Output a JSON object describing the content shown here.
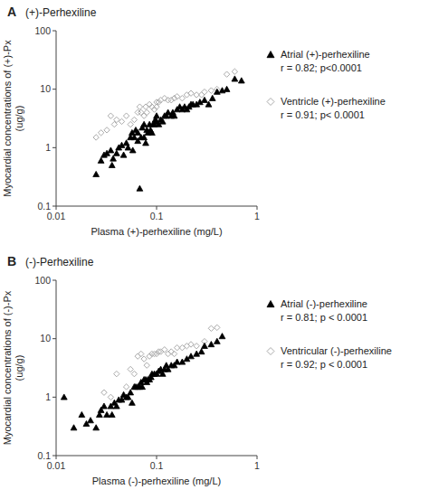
{
  "chart_data": [
    {
      "type": "scatter",
      "title": "A",
      "subtitle": "(+)-Perhexiline",
      "xlabel": "Plasma (+)-perhexiline (mg/L)",
      "ylabel": "Myocardial concentrations of (+)-Px\n(ug/g)",
      "log": true,
      "grid": false,
      "legend": "right",
      "xlim": [
        0.01,
        1.0
      ],
      "ylim": [
        0.1,
        100
      ],
      "xticks": [
        0.01,
        0.1,
        1
      ],
      "yticks": [
        0.1,
        1,
        10,
        100
      ],
      "series": [
        {
          "name": "Ventricle (+)-perhexiline",
          "color": "#aaaaaa",
          "marker": "diamond",
          "x": [
            0.025,
            0.028,
            0.032,
            0.035,
            0.038,
            0.04,
            0.045,
            0.05,
            0.055,
            0.06,
            0.065,
            0.068,
            0.07,
            0.075,
            0.078,
            0.08,
            0.085,
            0.09,
            0.095,
            0.1,
            0.1,
            0.105,
            0.11,
            0.12,
            0.13,
            0.14,
            0.15,
            0.16,
            0.18,
            0.2,
            0.22,
            0.25,
            0.28,
            0.3,
            0.35,
            0.4,
            0.5,
            0.6
          ],
          "values": [
            1.5,
            1.8,
            2.0,
            3.5,
            2.5,
            3.0,
            2.8,
            3.5,
            2.5,
            3.0,
            4.0,
            5.0,
            4.0,
            3.5,
            5.0,
            4.0,
            5.5,
            5.0,
            4.5,
            5.0,
            6.0,
            6.0,
            6.5,
            7.0,
            6.5,
            6.5,
            7.0,
            7.5,
            7.0,
            8.0,
            8.5,
            8.0,
            8.0,
            9.0,
            9.5,
            10.0,
            18.0,
            20.0
          ]
        },
        {
          "name": "Atrial (+)-perhexiline",
          "color": "#000000",
          "marker": "triangle",
          "x": [
            0.025,
            0.028,
            0.03,
            0.032,
            0.035,
            0.036,
            0.037,
            0.04,
            0.042,
            0.045,
            0.047,
            0.05,
            0.052,
            0.055,
            0.057,
            0.058,
            0.06,
            0.062,
            0.065,
            0.065,
            0.068,
            0.07,
            0.072,
            0.075,
            0.075,
            0.078,
            0.08,
            0.082,
            0.085,
            0.087,
            0.09,
            0.092,
            0.095,
            0.097,
            0.1,
            0.1,
            0.105,
            0.11,
            0.115,
            0.12,
            0.125,
            0.13,
            0.14,
            0.145,
            0.15,
            0.16,
            0.17,
            0.18,
            0.19,
            0.2,
            0.21,
            0.22,
            0.23,
            0.25,
            0.27,
            0.3,
            0.33,
            0.36,
            0.4,
            0.45,
            0.5,
            0.6,
            0.7
          ],
          "values": [
            0.35,
            0.6,
            0.75,
            0.8,
            0.9,
            0.5,
            0.65,
            0.8,
            1.0,
            1.1,
            0.75,
            1.2,
            1.0,
            1.5,
            1.8,
            0.9,
            1.5,
            2.0,
            1.3,
            1.8,
            0.2,
            1.5,
            2.2,
            1.5,
            2.5,
            1.2,
            2.0,
            1.8,
            2.5,
            2.0,
            1.8,
            2.5,
            2.5,
            3.0,
            3.5,
            2.8,
            2.5,
            3.0,
            2.8,
            3.5,
            3.5,
            4.0,
            3.5,
            4.0,
            3.5,
            4.5,
            5.0,
            4.5,
            5.0,
            4.5,
            5.0,
            5.5,
            5.5,
            5.5,
            6.0,
            6.5,
            5.5,
            7.0,
            9.0,
            9.5,
            10.0,
            15.0,
            14.0
          ]
        }
      ],
      "legend_order": [
        1,
        0
      ],
      "annotations": [
        "r = 0.82; p<0.0001",
        "r = 0.91; p< 0.0001"
      ]
    },
    {
      "type": "scatter",
      "title": "B",
      "subtitle": "(-)-Perhexiline",
      "xlabel": "Plasma (-)-perhexiline (mg/L)",
      "ylabel": "Myocardial concentrations of (-)-Px\n(ug/g)",
      "log": true,
      "grid": false,
      "legend": "right",
      "xlim": [
        0.01,
        1.0
      ],
      "ylim": [
        0.1,
        100
      ],
      "xticks": [
        0.01,
        0.1,
        1
      ],
      "yticks": [
        0.1,
        1,
        10,
        100
      ],
      "series": [
        {
          "name": "Ventricular (-)-perhexiline",
          "color": "#aaaaaa",
          "marker": "diamond",
          "x": [
            0.03,
            0.035,
            0.04,
            0.05,
            0.055,
            0.06,
            0.065,
            0.07,
            0.075,
            0.08,
            0.085,
            0.09,
            0.095,
            0.1,
            0.105,
            0.11,
            0.12,
            0.13,
            0.14,
            0.15,
            0.16,
            0.18,
            0.2,
            0.22,
            0.25,
            0.3,
            0.35,
            0.4
          ],
          "values": [
            1.2,
            1.0,
            2.5,
            1.5,
            3.0,
            2.5,
            5.0,
            5.5,
            4.5,
            3.5,
            5.0,
            5.5,
            5.5,
            5.5,
            6.0,
            6.0,
            6.5,
            5.5,
            6.0,
            5.5,
            7.0,
            7.0,
            7.5,
            8.0,
            7.5,
            9.0,
            15.0,
            15.5
          ]
        },
        {
          "name": "Atrial (-)-perhexiline",
          "color": "#000000",
          "marker": "triangle",
          "x": [
            0.012,
            0.015,
            0.018,
            0.02,
            0.022,
            0.025,
            0.027,
            0.028,
            0.03,
            0.032,
            0.035,
            0.036,
            0.038,
            0.04,
            0.042,
            0.045,
            0.047,
            0.05,
            0.052,
            0.055,
            0.057,
            0.06,
            0.062,
            0.065,
            0.068,
            0.07,
            0.072,
            0.075,
            0.078,
            0.08,
            0.082,
            0.085,
            0.088,
            0.09,
            0.095,
            0.1,
            0.105,
            0.11,
            0.115,
            0.12,
            0.125,
            0.13,
            0.14,
            0.15,
            0.16,
            0.18,
            0.2,
            0.22,
            0.25,
            0.28,
            0.3,
            0.35,
            0.4,
            0.45
          ],
          "values": [
            1.0,
            0.3,
            0.5,
            0.35,
            0.4,
            0.3,
            0.5,
            0.6,
            0.7,
            0.5,
            0.7,
            0.5,
            0.8,
            0.7,
            0.9,
            0.9,
            1.1,
            1.0,
            1.0,
            1.2,
            0.8,
            1.5,
            1.5,
            1.5,
            1.5,
            1.8,
            1.5,
            2.0,
            2.0,
            1.8,
            2.0,
            2.0,
            2.2,
            2.5,
            2.5,
            2.5,
            2.8,
            3.0,
            2.5,
            3.0,
            3.5,
            3.0,
            3.5,
            3.5,
            4.0,
            4.0,
            4.5,
            5.0,
            5.5,
            6.0,
            7.5,
            8.0,
            9.0,
            11.0
          ]
        }
      ],
      "legend_order": [
        1,
        0
      ],
      "annotations": [
        "r = 0.81; p < 0.0001",
        "r = 0.92; p < 0.0001"
      ]
    }
  ]
}
